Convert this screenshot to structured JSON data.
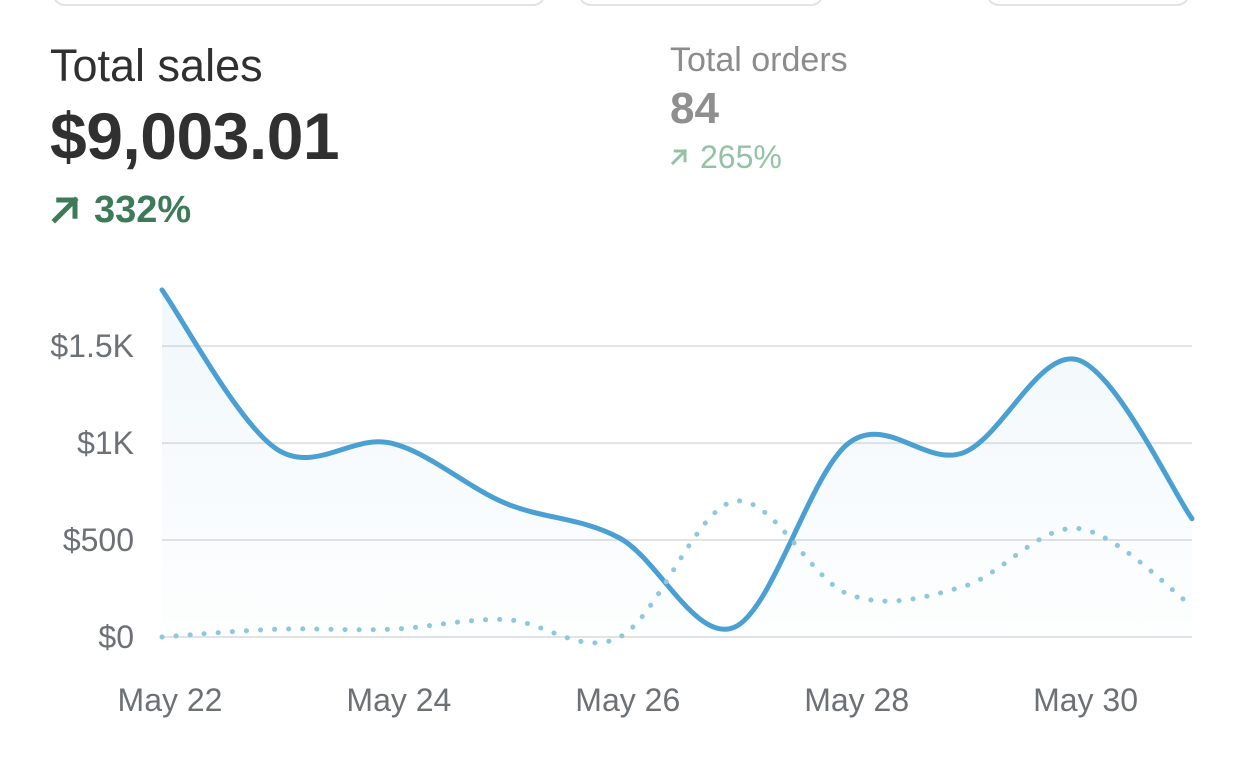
{
  "metrics": {
    "primary": {
      "label": "Total sales",
      "value": "$9,003.01",
      "change": "332%"
    },
    "secondary": {
      "label": "Total orders",
      "value": "84",
      "change": "265%"
    }
  },
  "colors": {
    "primary_line": "#4a9fd3",
    "comparison_line": "#8ec7de",
    "positive_change": "#3d7a58",
    "positive_change_muted": "#93c2a4",
    "gridline": "#e1e3e5"
  },
  "icons": {
    "change_indicator": "arrow-up-right-icon"
  },
  "chart_data": {
    "type": "line",
    "x": [
      "May 22",
      "May 23",
      "May 24",
      "May 25",
      "May 26",
      "May 27",
      "May 28",
      "May 29",
      "May 30",
      "May 31"
    ],
    "x_tick_labels": [
      "May 22",
      "May 24",
      "May 26",
      "May 28",
      "May 30"
    ],
    "y_tick_labels": [
      "$0",
      "$500",
      "$1K",
      "$1.5K"
    ],
    "y_ticks": [
      0,
      500,
      1000,
      1500
    ],
    "ylim": [
      0,
      1800
    ],
    "series": [
      {
        "values": [
          1790,
          970,
          1000,
          690,
          510,
          50,
          1000,
          950,
          1430,
          610
        ],
        "style": "solid",
        "fill": true
      },
      {
        "values": [
          0,
          40,
          40,
          90,
          0,
          700,
          220,
          260,
          560,
          160
        ],
        "style": "dotted",
        "fill": false
      }
    ],
    "grid": true,
    "legend": "none"
  }
}
